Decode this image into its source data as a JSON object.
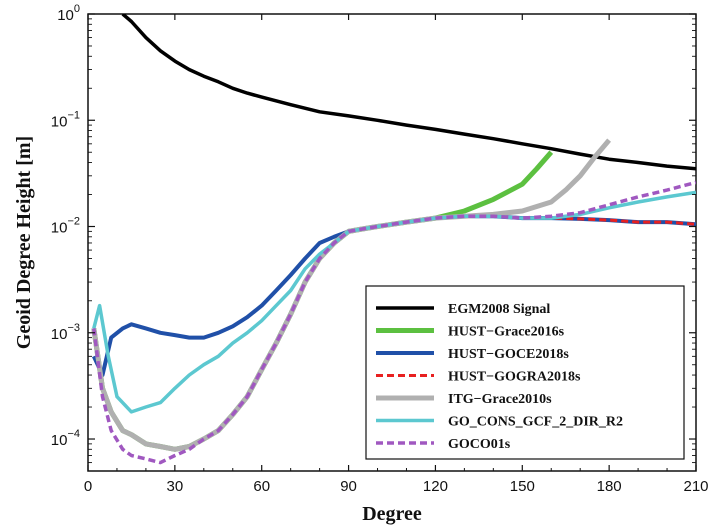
{
  "chart_data": {
    "type": "line",
    "xlabel": "Degree",
    "ylabel": "Geoid Degree Height [m]",
    "xlim": [
      0,
      210
    ],
    "ylim": [
      5e-05,
      1
    ],
    "yscale": "log",
    "grid": false,
    "legend_position": "bottom-right",
    "x_ticks": [
      "0",
      "30",
      "60",
      "90",
      "120",
      "150",
      "180",
      "210"
    ],
    "x_tick_values": [
      0,
      30,
      60,
      90,
      120,
      150,
      180,
      210
    ],
    "y_ticks": [
      {
        "value": 0.0001,
        "base": "10",
        "exp": "−4"
      },
      {
        "value": 0.001,
        "base": "10",
        "exp": "−3"
      },
      {
        "value": 0.01,
        "base": "10",
        "exp": "−2"
      },
      {
        "value": 0.1,
        "base": "10",
        "exp": "−1"
      },
      {
        "value": 1,
        "base": "10",
        "exp": "0"
      }
    ],
    "series": [
      {
        "name": "EGM2008 Signal",
        "color": "#000000",
        "width": 3.5,
        "dash": "",
        "points": [
          [
            12,
            1.0
          ],
          [
            15,
            0.85
          ],
          [
            20,
            0.6
          ],
          [
            25,
            0.45
          ],
          [
            30,
            0.36
          ],
          [
            35,
            0.3
          ],
          [
            40,
            0.26
          ],
          [
            45,
            0.23
          ],
          [
            50,
            0.2
          ],
          [
            55,
            0.18
          ],
          [
            60,
            0.165
          ],
          [
            70,
            0.14
          ],
          [
            80,
            0.12
          ],
          [
            90,
            0.11
          ],
          [
            100,
            0.1
          ],
          [
            110,
            0.09
          ],
          [
            120,
            0.082
          ],
          [
            130,
            0.074
          ],
          [
            140,
            0.067
          ],
          [
            150,
            0.06
          ],
          [
            160,
            0.054
          ],
          [
            170,
            0.048
          ],
          [
            180,
            0.043
          ],
          [
            190,
            0.04
          ],
          [
            200,
            0.037
          ],
          [
            210,
            0.035
          ]
        ]
      },
      {
        "name": "HUST−Grace2016s",
        "color": "#5cc040",
        "width": 5,
        "dash": "",
        "points": [
          [
            2,
            0.0011
          ],
          [
            5,
            0.0003
          ],
          [
            8,
            0.00018
          ],
          [
            12,
            0.00012
          ],
          [
            15,
            0.00011
          ],
          [
            20,
            9e-05
          ],
          [
            25,
            8.5e-05
          ],
          [
            30,
            8e-05
          ],
          [
            35,
            8.5e-05
          ],
          [
            40,
            0.0001
          ],
          [
            45,
            0.00012
          ],
          [
            50,
            0.00017
          ],
          [
            55,
            0.00025
          ],
          [
            60,
            0.00045
          ],
          [
            65,
            0.0008
          ],
          [
            70,
            0.0015
          ],
          [
            75,
            0.003
          ],
          [
            80,
            0.005
          ],
          [
            85,
            0.007
          ],
          [
            90,
            0.009
          ],
          [
            95,
            0.0095
          ],
          [
            100,
            0.01
          ],
          [
            110,
            0.011
          ],
          [
            120,
            0.012
          ],
          [
            130,
            0.014
          ],
          [
            140,
            0.018
          ],
          [
            150,
            0.025
          ],
          [
            155,
            0.035
          ],
          [
            160,
            0.05
          ]
        ]
      },
      {
        "name": "HUST−GOCE2018s",
        "color": "#2050a8",
        "width": 4,
        "dash": "",
        "points": [
          [
            2,
            0.0006
          ],
          [
            5,
            0.0004
          ],
          [
            8,
            0.0009
          ],
          [
            12,
            0.0011
          ],
          [
            15,
            0.0012
          ],
          [
            20,
            0.0011
          ],
          [
            25,
            0.001
          ],
          [
            30,
            0.00095
          ],
          [
            35,
            0.0009
          ],
          [
            40,
            0.0009
          ],
          [
            45,
            0.001
          ],
          [
            50,
            0.00115
          ],
          [
            55,
            0.0014
          ],
          [
            60,
            0.0018
          ],
          [
            65,
            0.0025
          ],
          [
            70,
            0.0035
          ],
          [
            75,
            0.005
          ],
          [
            80,
            0.007
          ],
          [
            85,
            0.008
          ],
          [
            90,
            0.009
          ],
          [
            95,
            0.0095
          ],
          [
            100,
            0.01
          ],
          [
            110,
            0.011
          ],
          [
            120,
            0.012
          ],
          [
            130,
            0.0125
          ],
          [
            140,
            0.0125
          ],
          [
            150,
            0.012
          ],
          [
            160,
            0.012
          ],
          [
            170,
            0.0118
          ],
          [
            180,
            0.0115
          ],
          [
            190,
            0.011
          ],
          [
            200,
            0.011
          ],
          [
            210,
            0.0105
          ]
        ]
      },
      {
        "name": "HUST−GOGRA2018s",
        "color": "#e82020",
        "width": 3,
        "dash": "7,4",
        "points": [
          [
            2,
            0.0011
          ],
          [
            5,
            0.0003
          ],
          [
            8,
            0.00018
          ],
          [
            12,
            0.00012
          ],
          [
            15,
            0.00011
          ],
          [
            20,
            9e-05
          ],
          [
            25,
            8.5e-05
          ],
          [
            30,
            8e-05
          ],
          [
            35,
            8.5e-05
          ],
          [
            40,
            0.0001
          ],
          [
            45,
            0.00012
          ],
          [
            50,
            0.00017
          ],
          [
            55,
            0.00025
          ],
          [
            60,
            0.00045
          ],
          [
            65,
            0.0008
          ],
          [
            70,
            0.0015
          ],
          [
            75,
            0.003
          ],
          [
            80,
            0.005
          ],
          [
            85,
            0.007
          ],
          [
            90,
            0.009
          ],
          [
            95,
            0.0095
          ],
          [
            100,
            0.01
          ],
          [
            110,
            0.011
          ],
          [
            120,
            0.012
          ],
          [
            130,
            0.0125
          ],
          [
            140,
            0.0125
          ],
          [
            150,
            0.012
          ],
          [
            160,
            0.012
          ],
          [
            170,
            0.0118
          ],
          [
            180,
            0.0115
          ],
          [
            190,
            0.011
          ],
          [
            200,
            0.011
          ],
          [
            210,
            0.0105
          ]
        ]
      },
      {
        "name": "ITG−Grace2010s",
        "color": "#b0b0b0",
        "width": 5,
        "dash": "",
        "points": [
          [
            2,
            0.0011
          ],
          [
            5,
            0.0003
          ],
          [
            8,
            0.00018
          ],
          [
            12,
            0.00012
          ],
          [
            15,
            0.00011
          ],
          [
            20,
            9e-05
          ],
          [
            25,
            8.5e-05
          ],
          [
            30,
            8e-05
          ],
          [
            35,
            8.5e-05
          ],
          [
            40,
            0.0001
          ],
          [
            45,
            0.00012
          ],
          [
            50,
            0.00017
          ],
          [
            55,
            0.00025
          ],
          [
            60,
            0.00045
          ],
          [
            65,
            0.0008
          ],
          [
            70,
            0.0015
          ],
          [
            75,
            0.003
          ],
          [
            80,
            0.005
          ],
          [
            85,
            0.007
          ],
          [
            90,
            0.009
          ],
          [
            95,
            0.0095
          ],
          [
            100,
            0.01
          ],
          [
            110,
            0.011
          ],
          [
            120,
            0.012
          ],
          [
            130,
            0.0125
          ],
          [
            140,
            0.013
          ],
          [
            150,
            0.014
          ],
          [
            160,
            0.017
          ],
          [
            165,
            0.022
          ],
          [
            170,
            0.03
          ],
          [
            175,
            0.045
          ],
          [
            180,
            0.065
          ]
        ]
      },
      {
        "name": "GO_CONS_GCF_2_DIR_R2",
        "color": "#5cc8d0",
        "width": 3.5,
        "dash": "",
        "points": [
          [
            2,
            0.0011
          ],
          [
            4,
            0.0018
          ],
          [
            7,
            0.0006
          ],
          [
            10,
            0.00025
          ],
          [
            15,
            0.00018
          ],
          [
            20,
            0.0002
          ],
          [
            25,
            0.00022
          ],
          [
            30,
            0.0003
          ],
          [
            35,
            0.0004
          ],
          [
            40,
            0.0005
          ],
          [
            45,
            0.0006
          ],
          [
            50,
            0.0008
          ],
          [
            55,
            0.001
          ],
          [
            60,
            0.0013
          ],
          [
            65,
            0.0018
          ],
          [
            70,
            0.0025
          ],
          [
            75,
            0.004
          ],
          [
            80,
            0.0055
          ],
          [
            85,
            0.007
          ],
          [
            90,
            0.009
          ],
          [
            95,
            0.0095
          ],
          [
            100,
            0.01
          ],
          [
            110,
            0.011
          ],
          [
            120,
            0.012
          ],
          [
            130,
            0.0125
          ],
          [
            140,
            0.0125
          ],
          [
            150,
            0.012
          ],
          [
            160,
            0.012
          ],
          [
            170,
            0.013
          ],
          [
            180,
            0.015
          ],
          [
            190,
            0.017
          ],
          [
            200,
            0.019
          ],
          [
            210,
            0.021
          ]
        ]
      },
      {
        "name": "GOCO01s",
        "color": "#a058c0",
        "width": 3.5,
        "dash": "7,4",
        "points": [
          [
            2,
            0.0011
          ],
          [
            5,
            0.00025
          ],
          [
            8,
            0.00012
          ],
          [
            12,
            8e-05
          ],
          [
            15,
            7e-05
          ],
          [
            20,
            6.5e-05
          ],
          [
            25,
            6e-05
          ],
          [
            30,
            7e-05
          ],
          [
            35,
            8e-05
          ],
          [
            40,
            0.0001
          ],
          [
            45,
            0.00012
          ],
          [
            50,
            0.00017
          ],
          [
            55,
            0.00025
          ],
          [
            60,
            0.00045
          ],
          [
            65,
            0.0008
          ],
          [
            70,
            0.0015
          ],
          [
            75,
            0.003
          ],
          [
            80,
            0.005
          ],
          [
            85,
            0.007
          ],
          [
            90,
            0.009
          ],
          [
            95,
            0.0095
          ],
          [
            100,
            0.01
          ],
          [
            110,
            0.011
          ],
          [
            120,
            0.012
          ],
          [
            130,
            0.0125
          ],
          [
            140,
            0.0125
          ],
          [
            150,
            0.012
          ],
          [
            160,
            0.0125
          ],
          [
            170,
            0.0135
          ],
          [
            180,
            0.016
          ],
          [
            190,
            0.019
          ],
          [
            200,
            0.022
          ],
          [
            210,
            0.026
          ]
        ]
      }
    ]
  }
}
